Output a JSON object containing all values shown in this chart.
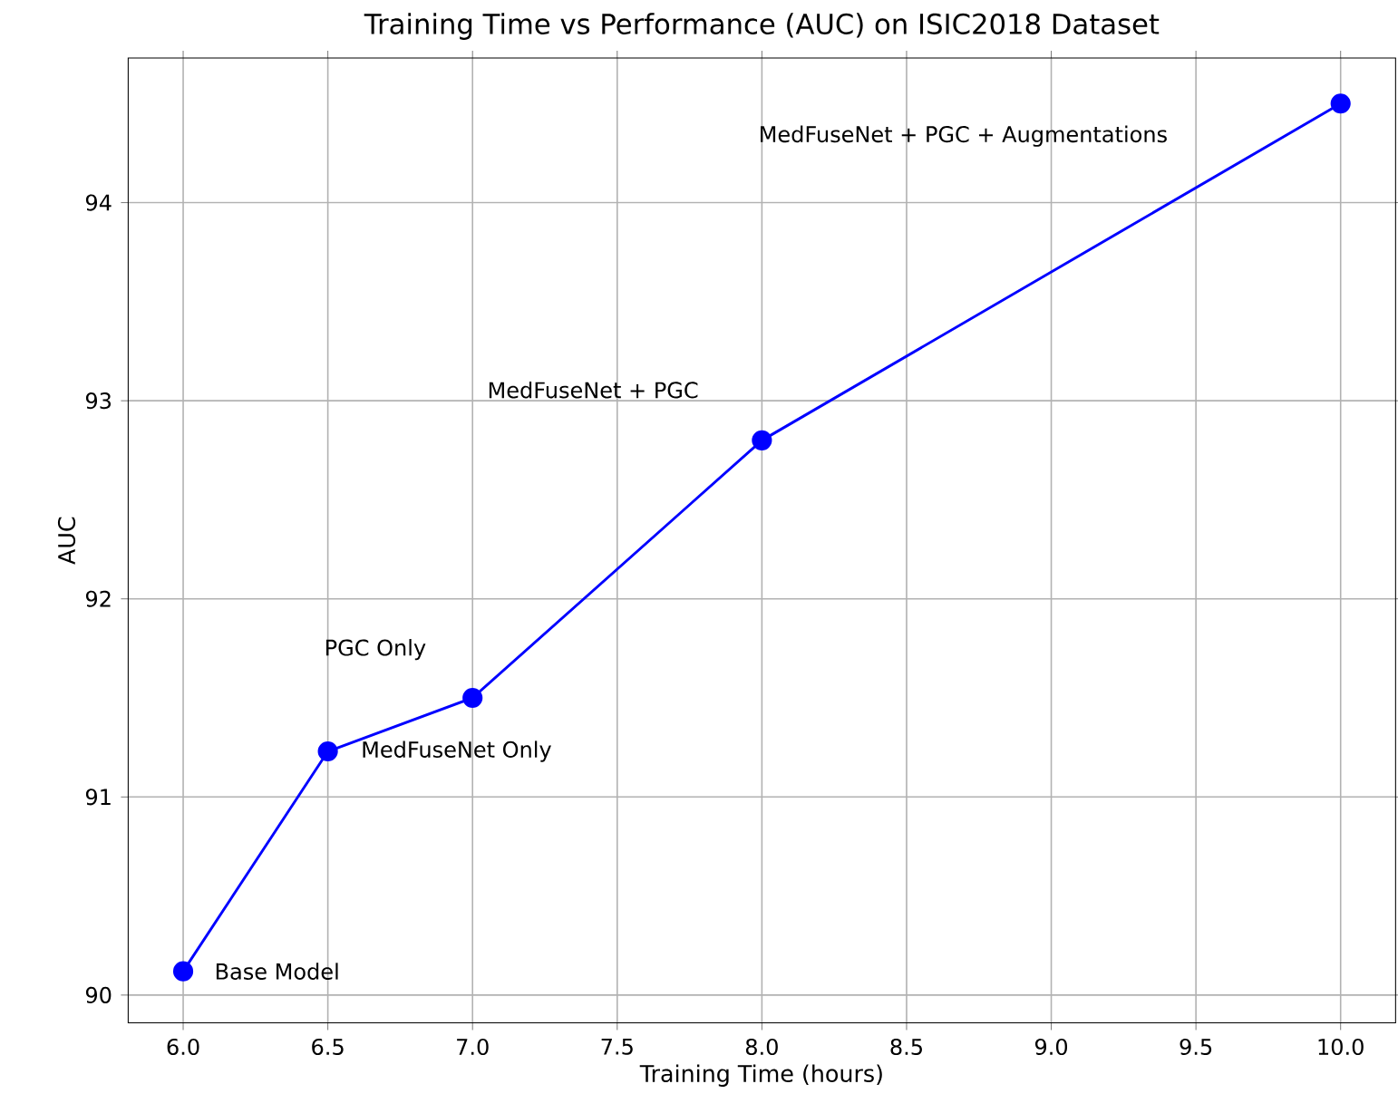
{
  "chart_data": {
    "type": "line",
    "title": "Training Time vs Performance (AUC) on ISIC2018 Dataset",
    "xlabel": "Training Time (hours)",
    "ylabel": "AUC",
    "x": [
      6.0,
      6.5,
      7.0,
      8.0,
      10.0
    ],
    "series": [
      {
        "color": "#0000ff",
        "values": [
          90.12,
          91.23,
          91.5,
          92.8,
          94.5
        ]
      }
    ],
    "xlim": [
      5.81,
      10.19
    ],
    "ylim": [
      89.86,
      94.73
    ],
    "xticks": [
      {
        "value": 6.0,
        "label": "6.0"
      },
      {
        "value": 6.5,
        "label": "6.5"
      },
      {
        "value": 7.0,
        "label": "7.0"
      },
      {
        "value": 7.5,
        "label": "7.5"
      },
      {
        "value": 8.0,
        "label": "8.0"
      },
      {
        "value": 8.5,
        "label": "8.5"
      },
      {
        "value": 9.0,
        "label": "9.0"
      },
      {
        "value": 9.5,
        "label": "9.5"
      },
      {
        "value": 10.0,
        "label": "10.0"
      }
    ],
    "yticks": [
      90,
      91,
      92,
      93,
      94
    ],
    "grid": true,
    "marker": "circle",
    "line_style": "solid",
    "annotations": [
      {
        "text": "Base Model",
        "x": 6.0,
        "y": 90.12
      },
      {
        "text": "MedFuseNet Only",
        "x": 6.5,
        "y": 91.23
      },
      {
        "text": "PGC Only",
        "x": 7.0,
        "y": 91.5
      },
      "MedFuseNet + PGC",
      "MedFuseNet + PGC + Augmentations"
    ]
  }
}
